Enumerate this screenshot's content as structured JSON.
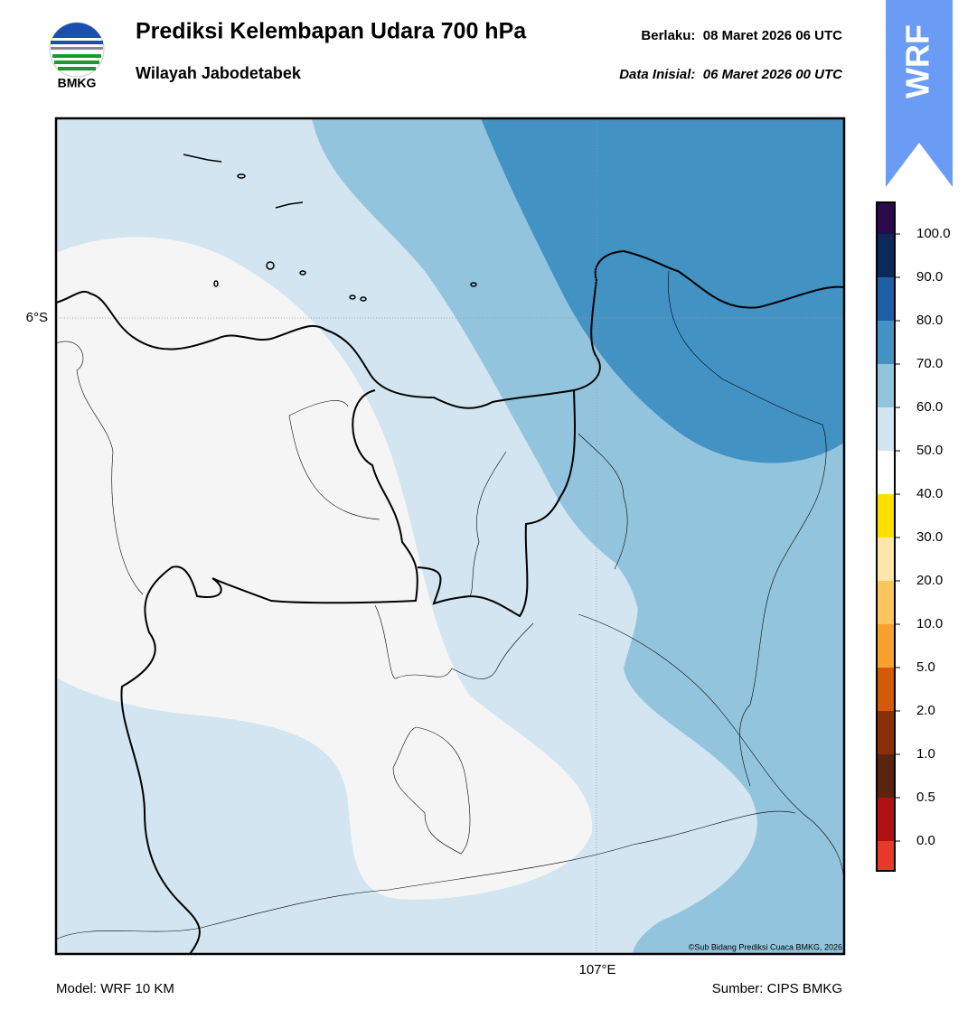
{
  "header": {
    "logo_text": "BMKG",
    "title": "Prediksi Kelembapan Udara 700 hPa",
    "subtitle": "Wilayah Jabodetabek",
    "valid": "Berlaku:  08 Maret 2026 06 UTC",
    "init": "Data Inisial:  06 Maret 2026 00 UTC",
    "badge": "WRF"
  },
  "map": {
    "lat_label": "6°S",
    "lon_label": "107°E",
    "credit": "©Sub Bidang Prediksi Cuaca BMKG, 2026"
  },
  "colorbar": {
    "labels": [
      "100.0",
      "90.0",
      "80.0",
      "70.0",
      "60.0",
      "50.0",
      "40.0",
      "30.0",
      "20.0",
      "10.0",
      "5.0",
      "2.0",
      "1.0",
      "0.5",
      "0.0"
    ]
  },
  "footer": {
    "model": "Model: WRF 10 KM",
    "source": "Sumber: CIPS BMKG"
  }
}
